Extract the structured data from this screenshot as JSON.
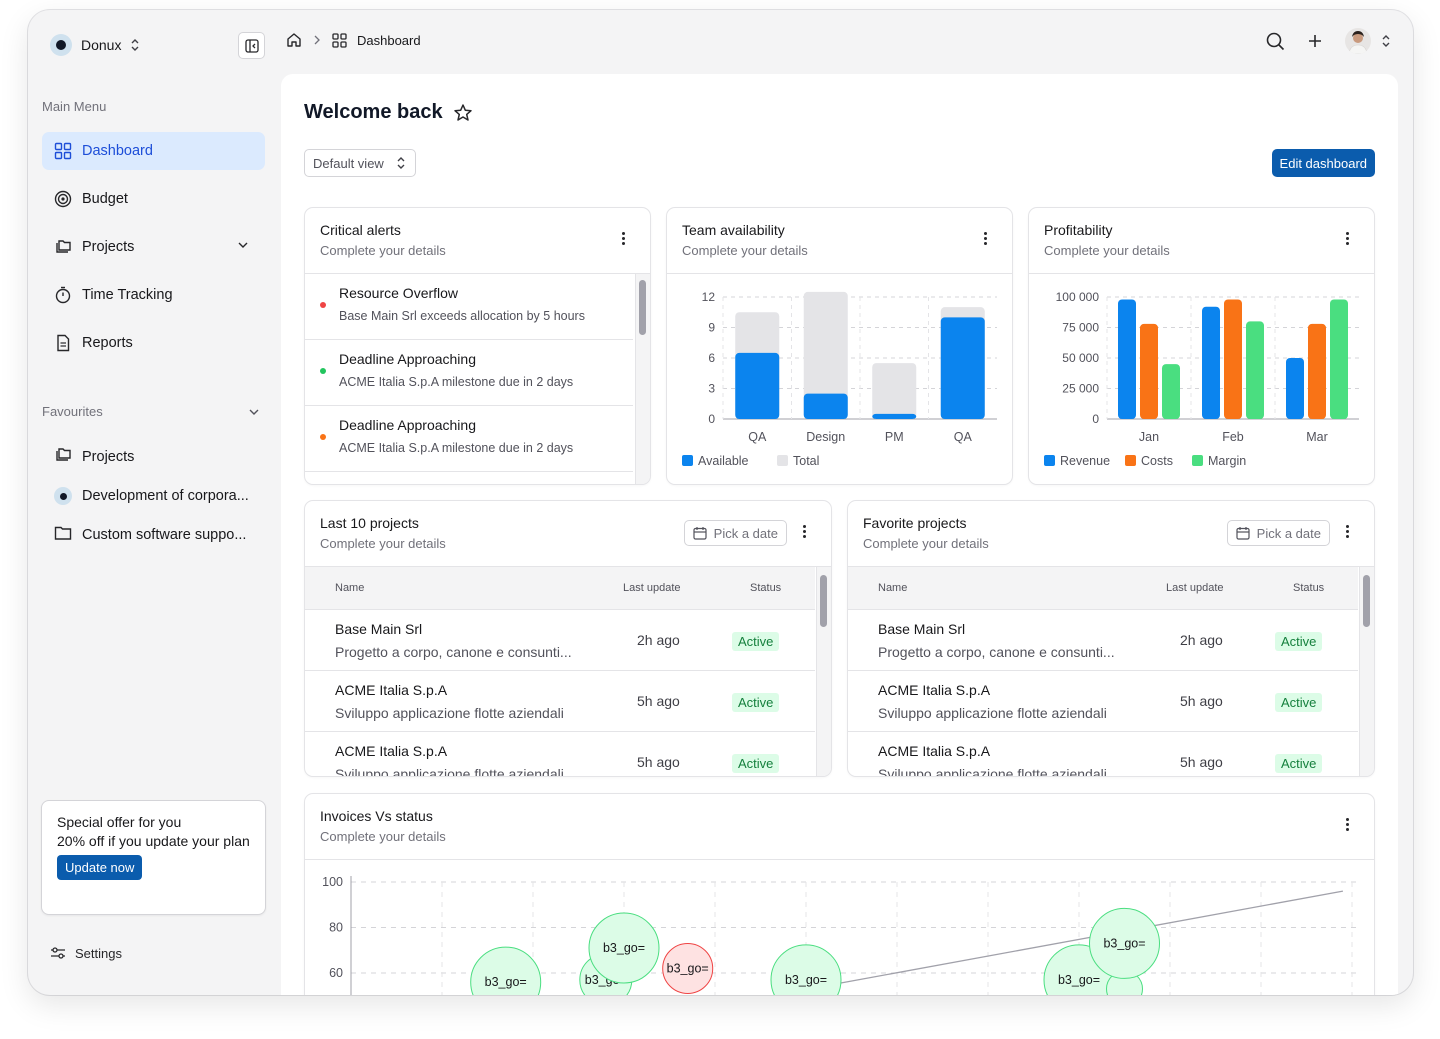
{
  "brand": {
    "name": "Donux"
  },
  "breadcrumb": {
    "current": "Dashboard"
  },
  "sidebar": {
    "main_menu_label": "Main Menu",
    "items": [
      {
        "label": "Dashboard"
      },
      {
        "label": "Budget"
      },
      {
        "label": "Projects"
      },
      {
        "label": "Time Tracking"
      },
      {
        "label": "Reports"
      }
    ],
    "favourites_label": "Favourites",
    "favourites": [
      {
        "label": "Projects"
      },
      {
        "label": "Development of corpora..."
      },
      {
        "label": "Custom software suppo..."
      }
    ],
    "offer": {
      "title": "Special offer for you",
      "text": "20% off if you update your plan",
      "button": "Update now"
    },
    "settings_label": "Settings"
  },
  "main": {
    "title": "Welcome back",
    "view_select": "Default view",
    "edit_button": "Edit dashboard"
  },
  "cards": {
    "alerts": {
      "title": "Critical alerts",
      "subtitle": "Complete your details",
      "items": [
        {
          "title": "Resource Overflow",
          "desc": "Base Main Srl exceeds allocation by 5 hours",
          "color": "#ef4444"
        },
        {
          "title": "Deadline Approaching",
          "desc": "ACME Italia S.p.A milestone due in 2 days",
          "color": "#22c55e"
        },
        {
          "title": "Deadline Approaching",
          "desc": "ACME Italia S.p.A milestone due in 2 days",
          "color": "#f97316"
        }
      ]
    },
    "team": {
      "title": "Team availability",
      "subtitle": "Complete your details"
    },
    "profit": {
      "title": "Profitability",
      "subtitle": "Complete your details"
    },
    "last10": {
      "title": "Last 10 projects",
      "subtitle": "Complete your details",
      "date_button": "Pick a date",
      "columns": {
        "name": "Name",
        "update": "Last update",
        "status": "Status"
      },
      "rows": [
        {
          "name": "Base Main Srl",
          "desc": "Progetto a corpo, canone e consunti...",
          "update": "2h ago",
          "status": "Active"
        },
        {
          "name": "ACME Italia S.p.A",
          "desc": "Sviluppo applicazione flotte aziendali",
          "update": "5h ago",
          "status": "Active"
        },
        {
          "name": "ACME Italia S.p.A",
          "desc": "Sviluppo applicazione flotte aziendali",
          "update": "5h ago",
          "status": "Active"
        }
      ]
    },
    "favorite": {
      "title": "Favorite projects",
      "subtitle": "Complete your details",
      "date_button": "Pick a date",
      "columns": {
        "name": "Name",
        "update": "Last update",
        "status": "Status"
      },
      "rows": [
        {
          "name": "Base Main Srl",
          "desc": "Progetto a corpo, canone e consunti...",
          "update": "2h ago",
          "status": "Active"
        },
        {
          "name": "ACME Italia S.p.A",
          "desc": "Sviluppo applicazione flotte aziendali",
          "update": "5h ago",
          "status": "Active"
        },
        {
          "name": "ACME Italia S.p.A",
          "desc": "Sviluppo applicazione flotte aziendali",
          "update": "5h ago",
          "status": "Active"
        }
      ]
    },
    "invoices": {
      "title": "Invoices Vs status",
      "subtitle": "Complete your details"
    }
  },
  "chart_data": [
    {
      "type": "bar",
      "categories": [
        "QA",
        "Design",
        "PM",
        "QA"
      ],
      "series": [
        {
          "name": "Available",
          "values": [
            6.5,
            2.5,
            0.5,
            10
          ],
          "color": "#0b84ee"
        },
        {
          "name": "Total",
          "values": [
            10.5,
            12.5,
            5.5,
            11
          ],
          "color": "#e4e4e7"
        }
      ],
      "yticks": [
        "0",
        "3",
        "6",
        "9",
        "12"
      ],
      "ylim": [
        0,
        12
      ],
      "stacked": "overlay",
      "legend": "bottom-left"
    },
    {
      "type": "bar",
      "categories": [
        "Jan",
        "Feb",
        "Mar"
      ],
      "series": [
        {
          "name": "Revenue",
          "values": [
            98000,
            92000,
            50000
          ],
          "color": "#0b84ee"
        },
        {
          "name": "Costs",
          "values": [
            78000,
            98000,
            78000
          ],
          "color": "#f97316"
        },
        {
          "name": "Margin",
          "values": [
            45000,
            80000,
            98000
          ],
          "color": "#4ade80"
        }
      ],
      "yticks": [
        "0",
        "25 000",
        "50 000",
        "75 000",
        "100 000"
      ],
      "ylim": [
        0,
        100000
      ],
      "legend": "bottom-left"
    },
    {
      "type": "scatter",
      "yticks": [
        "60",
        "80",
        "100"
      ],
      "ylim": [
        55,
        100
      ],
      "points": [
        {
          "x": 1.7,
          "y": 56,
          "r": 35,
          "label": "b3_go=",
          "status": "green"
        },
        {
          "x": 2.8,
          "y": 57,
          "r": 26,
          "label": "b3_go=",
          "status": "green"
        },
        {
          "x": 3.0,
          "y": 71,
          "r": 35,
          "label": "b3_go=",
          "status": "green"
        },
        {
          "x": 3.7,
          "y": 62,
          "r": 25,
          "label": "b3_go=",
          "status": "red"
        },
        {
          "x": 5.0,
          "y": 57,
          "r": 35,
          "label": "b3_go=",
          "status": "green"
        },
        {
          "x": 8.0,
          "y": 57,
          "r": 35,
          "label": "b3_go=",
          "status": "green"
        },
        {
          "x": 8.5,
          "y": 53,
          "r": 18,
          "label": "",
          "status": "green"
        },
        {
          "x": 8.5,
          "y": 73,
          "r": 35,
          "label": "b3_go=",
          "status": "green"
        }
      ],
      "trend": [
        {
          "x": 5.3,
          "y": 55
        },
        {
          "x": 10.9,
          "y": 96
        }
      ],
      "legend": "none"
    }
  ]
}
